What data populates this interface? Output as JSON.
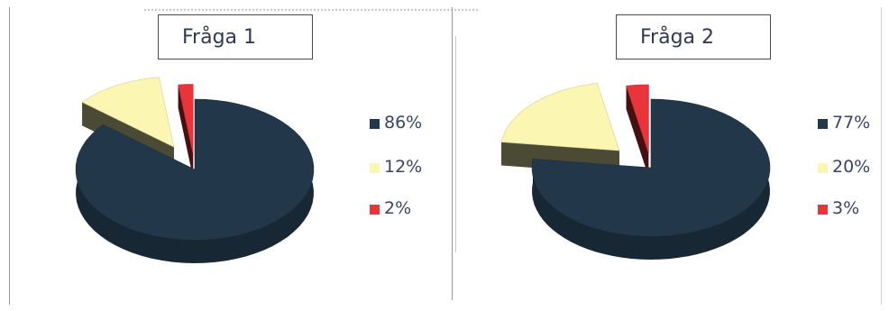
{
  "colors": {
    "dark": "#22384a",
    "yellow": "#fbf7b2",
    "red": "#e8343a"
  },
  "chart_data": [
    {
      "type": "pie",
      "title": "Fråga 1",
      "categories": [
        "86%",
        "12%",
        "2%"
      ],
      "values": [
        86,
        12,
        2
      ],
      "legend_position": "right",
      "legend": [
        "86%",
        "12%",
        "2%"
      ]
    },
    {
      "type": "pie",
      "title": "Fråga 2",
      "categories": [
        "77%",
        "20%",
        "3%"
      ],
      "values": [
        77,
        20,
        3
      ],
      "legend_position": "right",
      "legend": [
        "77%",
        "20%",
        "3%"
      ]
    }
  ]
}
